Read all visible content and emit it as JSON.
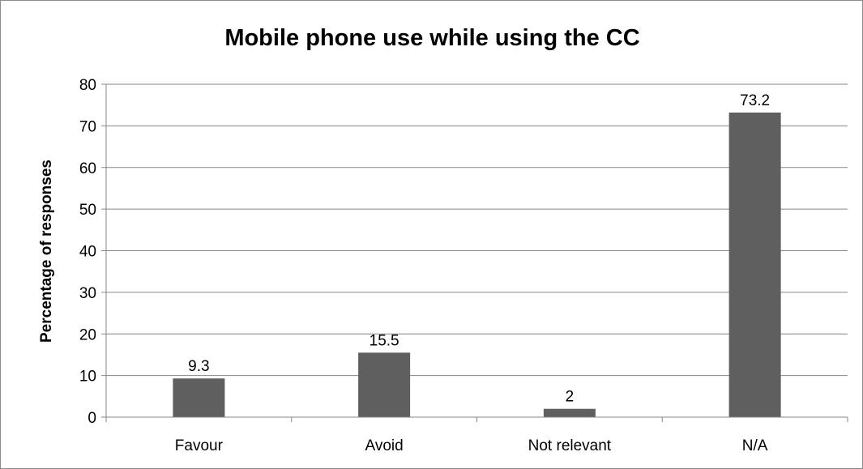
{
  "chart_data": {
    "type": "bar",
    "title": "Mobile phone use while using the CC",
    "xlabel": "",
    "ylabel": "Percentage of responses",
    "categories": [
      "Favour",
      "Avoid",
      "Not relevant",
      "N/A"
    ],
    "values": [
      9.3,
      15.5,
      2,
      73.2
    ],
    "data_labels": [
      "9.3",
      "15.5",
      "2",
      "73.2"
    ],
    "ylim": [
      0,
      80
    ],
    "yticks": [
      0,
      10,
      20,
      30,
      40,
      50,
      60,
      70,
      80
    ],
    "grid": true,
    "legend": "none",
    "colors": {
      "bar": "#5f5f5f",
      "grid": "#868686",
      "axis": "#868686",
      "text": "#000000"
    }
  }
}
